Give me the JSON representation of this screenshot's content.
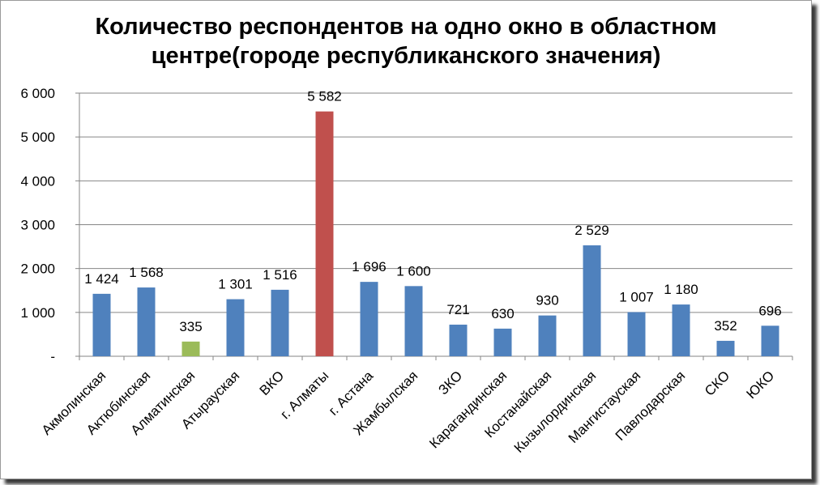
{
  "chart_data": {
    "type": "bar",
    "title_lines": [
      "Количество респондентов на одно окно в областном",
      "центре(городе республиканского значения)"
    ],
    "xlabel": "",
    "ylabel": "",
    "ylim": [
      0,
      6000
    ],
    "yticks": [
      {
        "value": 0,
        "label": "-"
      },
      {
        "value": 1000,
        "label": "1 000"
      },
      {
        "value": 2000,
        "label": "2 000"
      },
      {
        "value": 3000,
        "label": "3 000"
      },
      {
        "value": 4000,
        "label": "4 000"
      },
      {
        "value": 5000,
        "label": "5 000"
      },
      {
        "value": 6000,
        "label": "6 000"
      }
    ],
    "grid": true,
    "legend": "none",
    "categories": [
      "Акмолинская",
      "Актюбинская",
      "Алматинская",
      "Атырауская",
      "ВКО",
      "г. Алматы",
      "г. Астана",
      "Жамбылская",
      "ЗКО",
      "Карагандинская",
      "Костанайская",
      "Кызылординская",
      "Мангистауская",
      "Павлодарская",
      "СКО",
      "ЮКО"
    ],
    "values": [
      1424,
      1568,
      335,
      1301,
      1516,
      5582,
      1696,
      1600,
      721,
      630,
      930,
      2529,
      1007,
      1180,
      352,
      696
    ],
    "value_labels": [
      "1 424",
      "1 568",
      "335",
      "1 301",
      "1 516",
      "5 582",
      "1 696",
      "1 600",
      "721",
      "630",
      "930",
      "2 529",
      "1 007",
      "1 180",
      "352",
      "696"
    ],
    "colors": {
      "default": "#4f81bd",
      "highlight_max": "#c0504d",
      "highlight_min": "#9bbb59",
      "grid": "#868686"
    },
    "bar_colors": [
      "default",
      "default",
      "highlight_min",
      "default",
      "default",
      "highlight_max",
      "default",
      "default",
      "default",
      "default",
      "default",
      "default",
      "default",
      "default",
      "default",
      "default"
    ]
  }
}
